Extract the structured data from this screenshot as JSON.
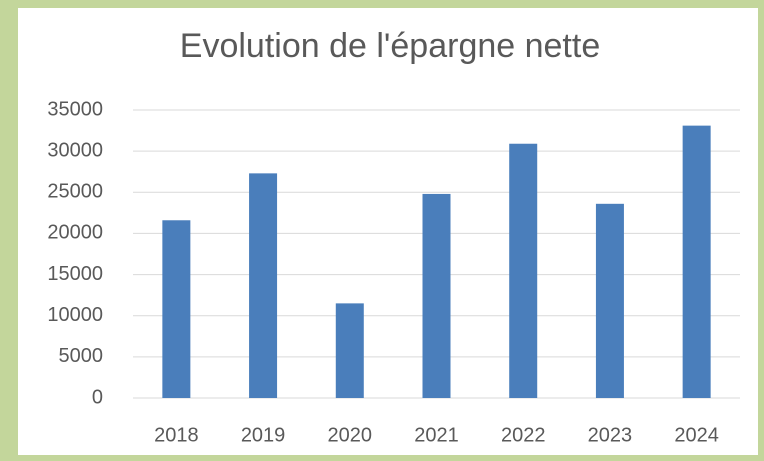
{
  "chart_data": {
    "type": "bar",
    "title": "Evolution de l'épargne nette",
    "categories": [
      "2018",
      "2019",
      "2020",
      "2021",
      "2022",
      "2023",
      "2024"
    ],
    "values": [
      21600,
      27300,
      11500,
      24800,
      30900,
      23600,
      33100
    ],
    "color": "#4a7ebb",
    "ylim": [
      0,
      35000
    ],
    "yticks": [
      0,
      5000,
      10000,
      15000,
      20000,
      25000,
      30000,
      35000
    ],
    "grid": true
  }
}
